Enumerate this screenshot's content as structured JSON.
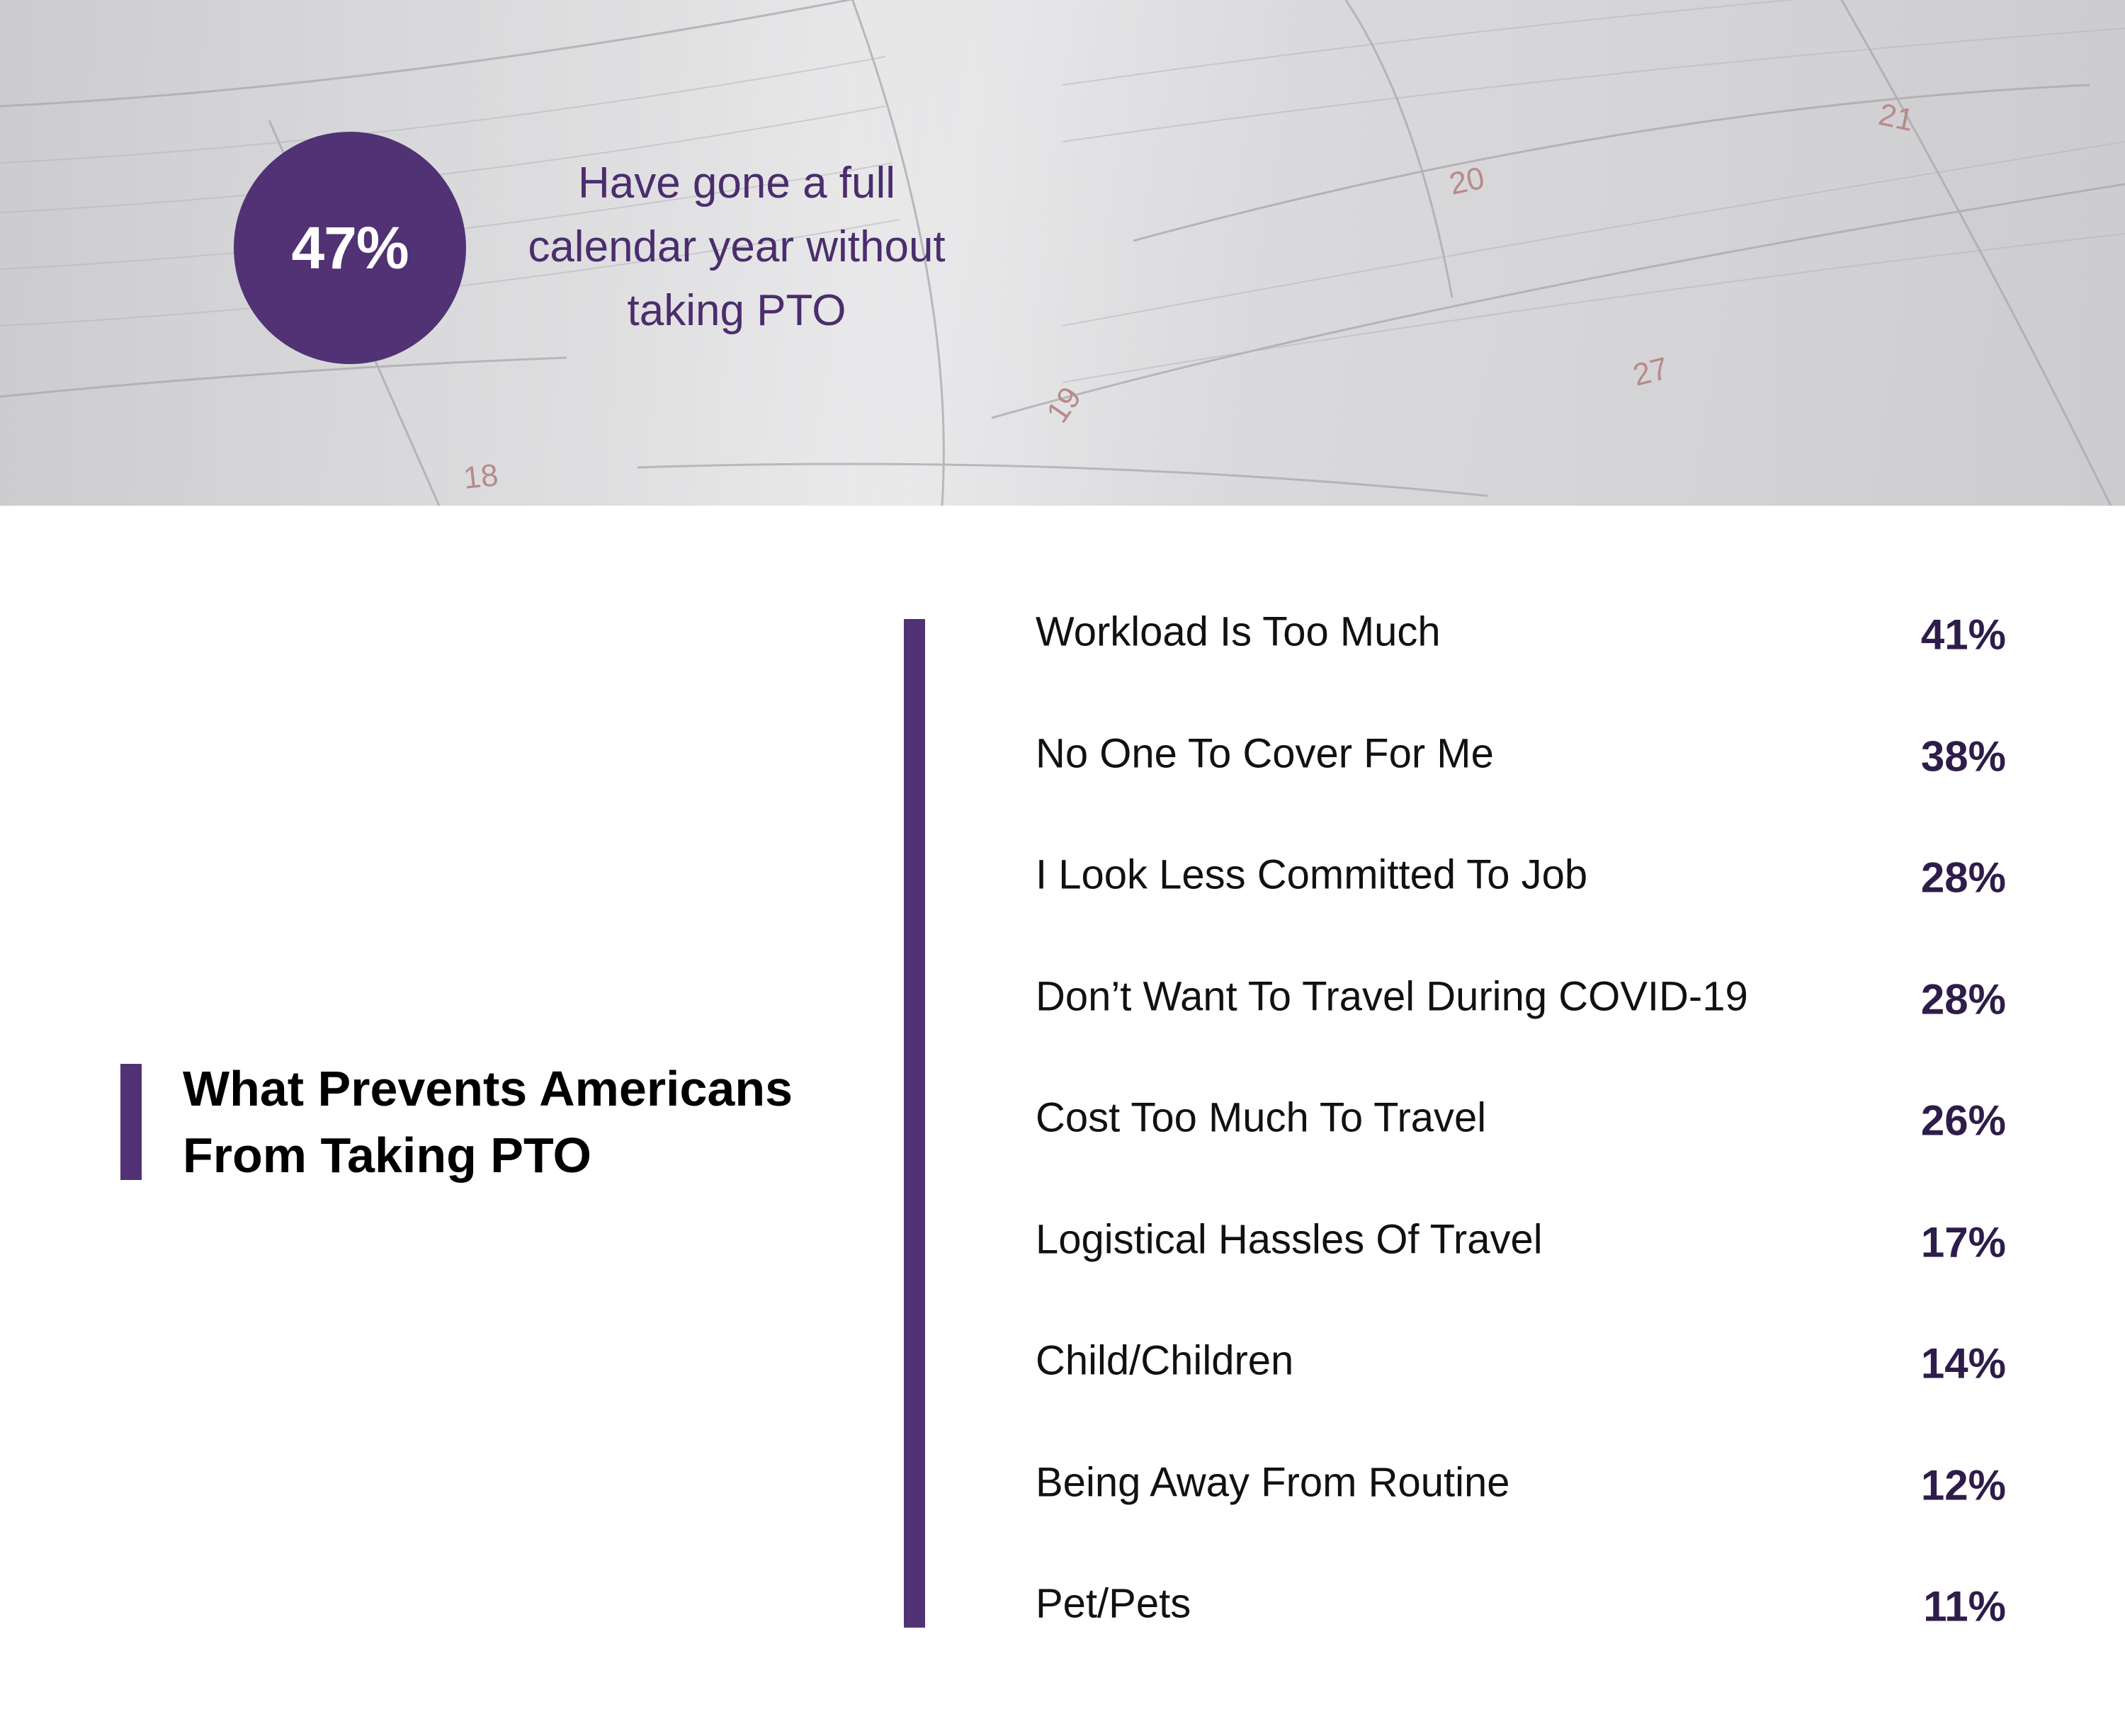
{
  "banner": {
    "stat_value": "47%",
    "stat_caption_lines": [
      "Have gone a full",
      "calendar year without",
      "taking PTO"
    ],
    "calendar_dates": [
      "18",
      "19",
      "20",
      "21",
      "27"
    ]
  },
  "colors": {
    "accent": "#513375",
    "value_text": "#2e1d4a",
    "date_text": "#b88a8a"
  },
  "chart_data": {
    "type": "table",
    "title": "What Prevents Americans From Taking PTO",
    "categories": [
      "Workload Is Too Much",
      "No One To Cover For Me",
      "I Look Less Committed To Job",
      "Don’t Want To Travel During COVID-19",
      "Cost Too Much To Travel",
      "Logistical Hassles Of Travel",
      "Child/Children",
      "Being Away From Routine",
      "Pet/Pets"
    ],
    "values": [
      41,
      38,
      28,
      28,
      26,
      17,
      14,
      12,
      11
    ],
    "value_labels": [
      "41%",
      "38%",
      "28%",
      "28%",
      "26%",
      "17%",
      "14%",
      "12%",
      "11%"
    ]
  }
}
